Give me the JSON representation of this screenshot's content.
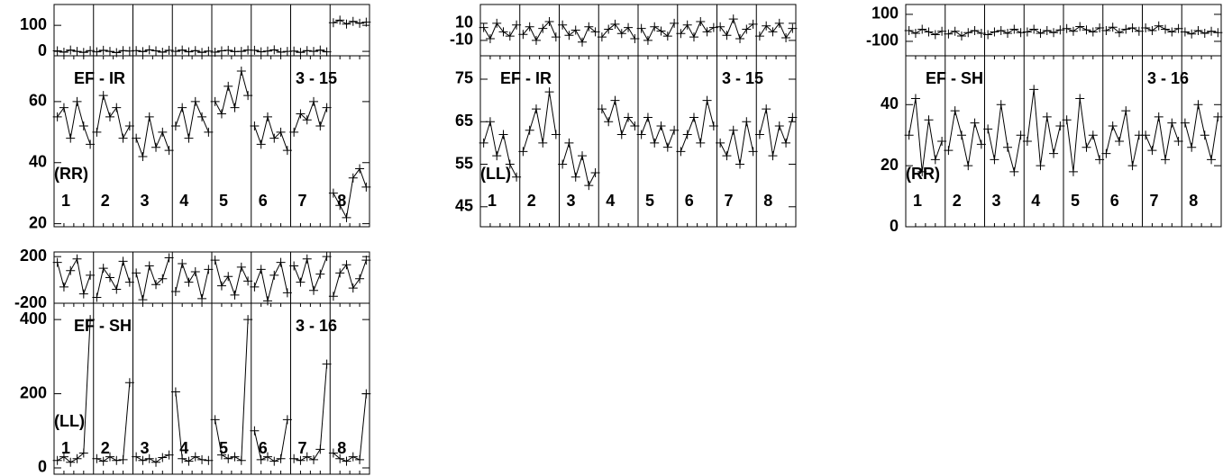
{
  "chart_data": [
    {
      "type": "line",
      "color": "#000000",
      "label": "EF - IR",
      "baseline": "3 - 15",
      "polarization": "(RR)",
      "phase_ylim": [
        -17,
        180
      ],
      "phase_yticks": [
        0,
        100
      ],
      "ylim": [
        19,
        75
      ],
      "yticks": [
        20,
        40,
        60
      ],
      "segments": [
        {
          "label": "1",
          "phase": [
            2,
            -3,
            5,
            0,
            -4,
            3
          ],
          "amp": [
            55,
            58,
            48,
            60,
            52,
            46
          ]
        },
        {
          "label": "2",
          "phase": [
            -2,
            4,
            0,
            -5,
            3,
            1
          ],
          "amp": [
            50,
            62,
            55,
            58,
            48,
            52
          ]
        },
        {
          "label": "3",
          "phase": [
            3,
            -1,
            6,
            2,
            -3,
            4
          ],
          "amp": [
            48,
            42,
            55,
            45,
            50,
            44
          ]
        },
        {
          "label": "4",
          "phase": [
            0,
            5,
            -2,
            3,
            -4,
            1
          ],
          "amp": [
            52,
            58,
            48,
            60,
            55,
            50
          ]
        },
        {
          "label": "5",
          "phase": [
            -3,
            2,
            4,
            -1,
            0,
            5
          ],
          "amp": [
            60,
            56,
            65,
            58,
            70,
            62
          ]
        },
        {
          "label": "6",
          "phase": [
            4,
            -2,
            1,
            6,
            -3,
            0
          ],
          "amp": [
            52,
            46,
            55,
            48,
            50,
            44
          ]
        },
        {
          "label": "7",
          "phase": [
            1,
            -4,
            3,
            0,
            5,
            -2
          ],
          "amp": [
            50,
            56,
            54,
            60,
            52,
            58
          ]
        },
        {
          "label": "8",
          "phase": [
            110,
            120,
            105,
            115,
            108,
            112
          ],
          "amp": [
            30,
            26,
            22,
            35,
            38,
            32
          ]
        }
      ]
    },
    {
      "type": "line",
      "color": "#000000",
      "label": "EF - IR",
      "baseline": "3 - 15",
      "polarization": "(LL)",
      "phase_ylim": [
        -28,
        32
      ],
      "phase_yticks": [
        -10,
        10
      ],
      "ylim": [
        40.3,
        80.5
      ],
      "yticks": [
        45,
        55,
        65,
        75
      ],
      "segments": [
        {
          "label": "1",
          "phase": [
            5,
            -8,
            10,
            0,
            -5,
            8
          ],
          "amp": [
            60,
            65,
            57,
            62,
            55,
            52
          ]
        },
        {
          "label": "2",
          "phase": [
            -3,
            6,
            -10,
            4,
            12,
            -6
          ],
          "amp": [
            58,
            63,
            68,
            60,
            72,
            62
          ]
        },
        {
          "label": "3",
          "phase": [
            8,
            -4,
            2,
            -12,
            6,
            0
          ],
          "amp": [
            55,
            60,
            52,
            57,
            50,
            53
          ]
        },
        {
          "label": "4",
          "phase": [
            -6,
            3,
            9,
            -2,
            5,
            -8
          ],
          "amp": [
            68,
            65,
            70,
            62,
            66,
            64
          ]
        },
        {
          "label": "5",
          "phase": [
            4,
            -10,
            6,
            1,
            -5,
            10
          ],
          "amp": [
            62,
            66,
            60,
            64,
            59,
            63
          ]
        },
        {
          "label": "6",
          "phase": [
            -2,
            8,
            -6,
            12,
            0,
            5
          ],
          "amp": [
            58,
            62,
            66,
            60,
            70,
            64
          ]
        },
        {
          "label": "7",
          "phase": [
            6,
            -4,
            15,
            -8,
            3,
            9
          ],
          "amp": [
            60,
            57,
            63,
            55,
            65,
            58
          ]
        },
        {
          "label": "8",
          "phase": [
            -5,
            7,
            0,
            10,
            -7,
            4
          ],
          "amp": [
            62,
            68,
            57,
            64,
            60,
            66
          ]
        }
      ]
    },
    {
      "type": "line",
      "color": "#000000",
      "label": "EF - SH",
      "baseline": "3 - 16",
      "polarization": "(RR)",
      "phase_ylim": [
        -207,
        173
      ],
      "phase_yticks": [
        -100,
        100
      ],
      "ylim": [
        0,
        56
      ],
      "yticks": [
        0,
        20,
        40
      ],
      "segments": [
        {
          "label": "1",
          "phase": [
            -20,
            -40,
            -10,
            -30,
            -50,
            -25
          ],
          "amp": [
            30,
            42,
            18,
            35,
            22,
            28
          ]
        },
        {
          "label": "2",
          "phase": [
            -45,
            -25,
            -60,
            -35,
            -20,
            -40
          ],
          "amp": [
            25,
            38,
            30,
            20,
            34,
            27
          ]
        },
        {
          "label": "3",
          "phase": [
            -50,
            -30,
            -20,
            -40,
            -10,
            -35
          ],
          "amp": [
            32,
            22,
            40,
            26,
            18,
            30
          ]
        },
        {
          "label": "4",
          "phase": [
            -30,
            -10,
            -40,
            -20,
            -35,
            -15
          ],
          "amp": [
            28,
            45,
            20,
            36,
            24,
            33
          ]
        },
        {
          "label": "5",
          "phase": [
            -5,
            -25,
            10,
            -15,
            -30,
            0
          ],
          "amp": [
            35,
            18,
            42,
            26,
            30,
            22
          ]
        },
        {
          "label": "6",
          "phase": [
            -20,
            5,
            -35,
            -10,
            0,
            -25
          ],
          "amp": [
            24,
            33,
            28,
            38,
            20,
            30
          ]
        },
        {
          "label": "7",
          "phase": [
            0,
            -20,
            15,
            -10,
            -30,
            -5
          ],
          "amp": [
            30,
            25,
            36,
            22,
            34,
            28
          ]
        },
        {
          "label": "8",
          "phase": [
            -30,
            -45,
            -20,
            -40,
            -25,
            -35
          ],
          "amp": [
            34,
            26,
            40,
            30,
            22,
            36
          ]
        }
      ]
    },
    {
      "type": "line",
      "color": "#000000",
      "label": "EF - SH",
      "baseline": "3 - 16",
      "polarization": "(LL)",
      "phase_ylim": [
        -200,
        240
      ],
      "phase_yticks": [
        -200,
        200
      ],
      "ylim": [
        -17,
        444
      ],
      "yticks": [
        0,
        200,
        400
      ],
      "segments": [
        {
          "label": "1",
          "phase": [
            150,
            -60,
            80,
            180,
            -120,
            40
          ],
          "amp": [
            20,
            30,
            15,
            25,
            40,
            400
          ]
        },
        {
          "label": "2",
          "phase": [
            -150,
            100,
            20,
            -80,
            160,
            -20
          ],
          "amp": [
            25,
            18,
            30,
            20,
            22,
            230
          ]
        },
        {
          "label": "3",
          "phase": [
            60,
            -170,
            120,
            -40,
            10,
            190
          ],
          "amp": [
            30,
            20,
            25,
            15,
            28,
            35
          ]
        },
        {
          "label": "4",
          "phase": [
            -100,
            140,
            -20,
            70,
            -160,
            90
          ],
          "amp": [
            205,
            25,
            18,
            30,
            22,
            20
          ]
        },
        {
          "label": "5",
          "phase": [
            170,
            -50,
            30,
            -130,
            110,
            -10
          ],
          "amp": [
            130,
            35,
            25,
            30,
            20,
            400
          ]
        },
        {
          "label": "6",
          "phase": [
            -60,
            90,
            -180,
            40,
            150,
            -110
          ],
          "amp": [
            100,
            22,
            30,
            18,
            25,
            130
          ]
        },
        {
          "label": "7",
          "phase": [
            120,
            -20,
            180,
            -90,
            50,
            200
          ],
          "amp": [
            25,
            20,
            30,
            22,
            50,
            280
          ]
        },
        {
          "label": "8",
          "phase": [
            -140,
            60,
            130,
            -70,
            10,
            170
          ],
          "amp": [
            40,
            25,
            18,
            30,
            22,
            200
          ]
        }
      ]
    }
  ]
}
